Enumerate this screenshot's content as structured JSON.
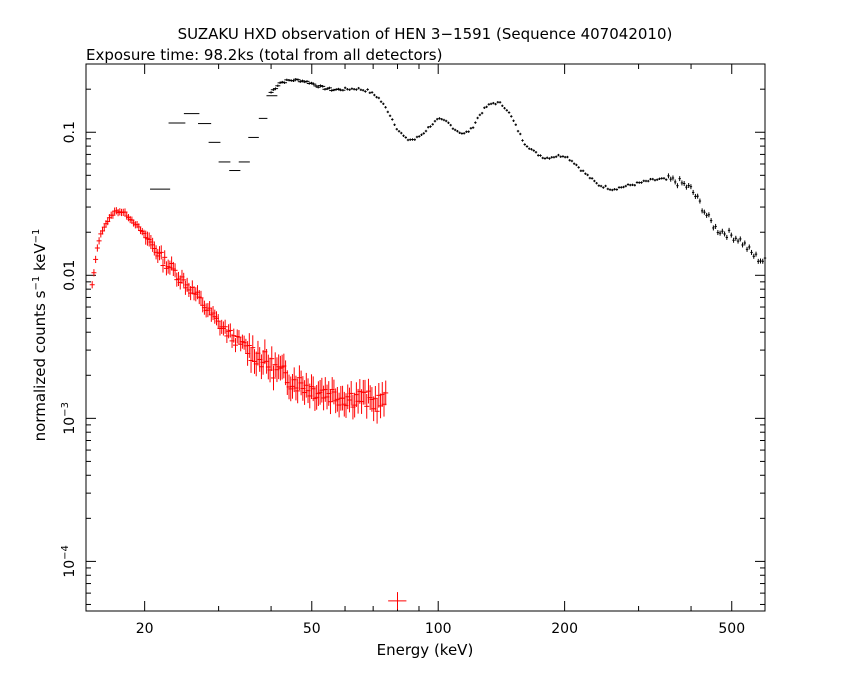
{
  "chart_data": {
    "type": "scatter",
    "title": "SUZAKU HXD observation of HEN 3−1591 (Sequence 407042010)",
    "subtitle": "Exposure time: 98.2ks (total from all detectors)",
    "xlabel": "Energy (keV)",
    "ylabel_parts": {
      "main": "normalized counts s",
      "sup1": "−1",
      "mid": " keV",
      "sup2": "−1"
    },
    "x_scale": "log",
    "y_scale": "log",
    "xlim": [
      14.5,
      600
    ],
    "ylim": [
      4.5e-05,
      0.3
    ],
    "x_ticks": [
      {
        "value": 20,
        "label": "20"
      },
      {
        "value": 50,
        "label": "50"
      },
      {
        "value": 100,
        "label": "100"
      },
      {
        "value": 200,
        "label": "200"
      },
      {
        "value": 500,
        "label": "500"
      }
    ],
    "y_ticks": [
      {
        "value": 0.1,
        "label": "0.1"
      },
      {
        "value": 0.01,
        "label": "0.01"
      },
      {
        "value": 0.001,
        "label_base": "10",
        "label_exp": "−3"
      },
      {
        "value": 0.0001,
        "label_base": "10",
        "label_exp": "−4"
      }
    ],
    "series_colors": [
      "#000000",
      "#ff0000"
    ],
    "series": [
      {
        "marker": "error-bar-cross",
        "color": "#000000",
        "segments": [
          {
            "x_lo": 20.6,
            "x_hi": 23.0,
            "y": 0.04
          },
          {
            "x_lo": 22.8,
            "x_hi": 25.0,
            "y": 0.116
          },
          {
            "x_lo": 24.8,
            "x_hi": 27.0,
            "y": 0.135
          },
          {
            "x_lo": 26.8,
            "x_hi": 28.8,
            "y": 0.115
          },
          {
            "x_lo": 28.4,
            "x_hi": 30.3,
            "y": 0.085
          },
          {
            "x_lo": 30.0,
            "x_hi": 32.0,
            "y": 0.062
          },
          {
            "x_lo": 31.8,
            "x_hi": 33.8,
            "y": 0.054
          },
          {
            "x_lo": 33.5,
            "x_hi": 35.6,
            "y": 0.062
          },
          {
            "x_lo": 35.3,
            "x_hi": 37.4,
            "y": 0.092
          },
          {
            "x_lo": 37.4,
            "x_hi": 39.2,
            "y": 0.125
          },
          {
            "x_lo": 39.0,
            "x_hi": 41.4,
            "y": 0.18
          }
        ],
        "curve_x": [
          40,
          42,
          44,
          46,
          48,
          50,
          53,
          56,
          60,
          64,
          68,
          72,
          76,
          80,
          84,
          88,
          92,
          96,
          100,
          105,
          110,
          115,
          120,
          125,
          130,
          135,
          140,
          145,
          150,
          160,
          170,
          180,
          190,
          200,
          210,
          220,
          230,
          240,
          260,
          280,
          300,
          320,
          340,
          360,
          380,
          400,
          420,
          440,
          460,
          480,
          500,
          520,
          540,
          560,
          580,
          600
        ],
        "curve_y": [
          0.19,
          0.222,
          0.23,
          0.232,
          0.228,
          0.22,
          0.205,
          0.198,
          0.2,
          0.202,
          0.195,
          0.175,
          0.14,
          0.105,
          0.089,
          0.089,
          0.098,
          0.112,
          0.123,
          0.118,
          0.104,
          0.097,
          0.105,
          0.13,
          0.15,
          0.16,
          0.16,
          0.148,
          0.125,
          0.085,
          0.072,
          0.066,
          0.068,
          0.069,
          0.062,
          0.054,
          0.048,
          0.043,
          0.04,
          0.042,
          0.044,
          0.046,
          0.047,
          0.046,
          0.044,
          0.04,
          0.032,
          0.025,
          0.021,
          0.02,
          0.019,
          0.018,
          0.016,
          0.014,
          0.013,
          0.0125
        ]
      },
      {
        "marker": "error-bar-cross",
        "color": "#ff0000",
        "curve_x": [
          15.0,
          15.5,
          16.0,
          16.5,
          17.0,
          17.5,
          18.0,
          19.0,
          20.0,
          21.0,
          22.0,
          23.0,
          24.0,
          25.0,
          26.0,
          27.0,
          28.0,
          29.0,
          30.0,
          32.0,
          34.0,
          36.0,
          38.0,
          40.0,
          42.0,
          44.0,
          46.0,
          48.0,
          50.0,
          55.0,
          60.0,
          65.0,
          70.0,
          75.0
        ],
        "curve_y": [
          0.0085,
          0.017,
          0.022,
          0.025,
          0.028,
          0.028,
          0.027,
          0.023,
          0.019,
          0.016,
          0.013,
          0.0115,
          0.01,
          0.0088,
          0.0078,
          0.0068,
          0.0059,
          0.0052,
          0.0046,
          0.0038,
          0.0033,
          0.0029,
          0.0026,
          0.0023,
          0.0021,
          0.0019,
          0.0018,
          0.0017,
          0.0016,
          0.0015,
          0.0014,
          0.0014,
          0.0013,
          0.0013
        ],
        "outlier": {
          "x": 80,
          "x_lo": 76,
          "x_hi": 84,
          "y": 5.3e-05,
          "y_lo": 4.6e-05,
          "y_hi": 6.1e-05
        }
      }
    ]
  }
}
